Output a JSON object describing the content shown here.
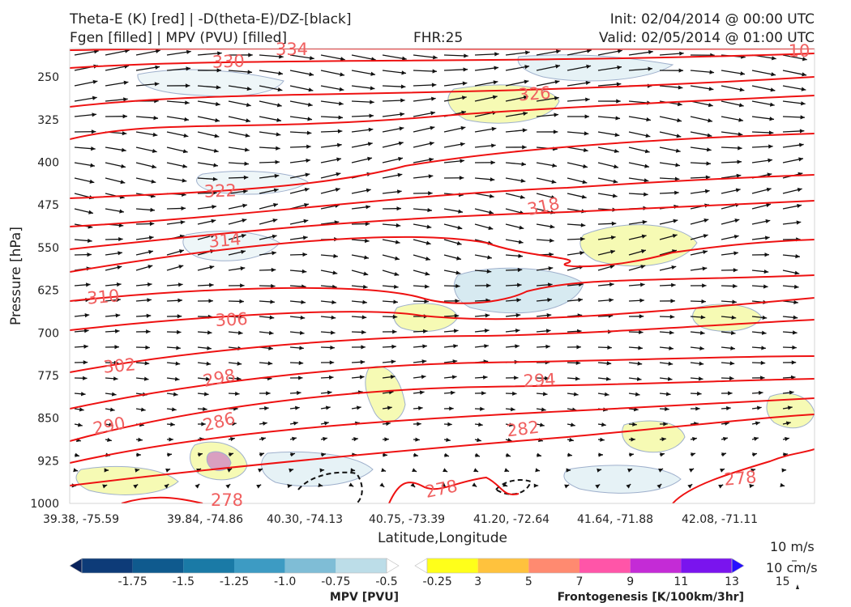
{
  "header": {
    "line1_left": "Theta-E (K) [red] | -D(theta-E)/DZ-[black]",
    "line2_left": "Fgen [filled] | MPV (PVU) [filled]",
    "fhr": "FHR:25",
    "init": "Init: 02/04/2014 @ 00:00 UTC",
    "valid": "Valid: 02/05/2014 @ 01:00 UTC"
  },
  "chart_data": {
    "type": "cross-section",
    "xlabel": "Latitude,Longitude",
    "ylabel": "Pressure [hPa]",
    "x_ticks": [
      "39.38, -75.59",
      "39.84, -74.86",
      "40.30, -74.13",
      "40.75, -73.39",
      "41.20, -72.64",
      "41.64, -71.88",
      "42.08, -71.11"
    ],
    "y_ticks": [
      250,
      325,
      400,
      475,
      550,
      625,
      700,
      775,
      850,
      925,
      1000
    ],
    "ylim": [
      1000,
      200
    ],
    "theta_e_contours": [
      {
        "label": "330",
        "value": 330
      },
      {
        "label": "334",
        "value": 334
      },
      {
        "label": "326",
        "value": 326
      },
      {
        "label": "322",
        "value": 322
      },
      {
        "label": "318",
        "value": 318
      },
      {
        "label": "314",
        "value": 314
      },
      {
        "label": "310",
        "value": 310
      },
      {
        "label": "306",
        "value": 306
      },
      {
        "label": "302",
        "value": 302
      },
      {
        "label": "298",
        "value": 298
      },
      {
        "label": "294",
        "value": 294
      },
      {
        "label": "290",
        "value": 290
      },
      {
        "label": "286",
        "value": 286
      },
      {
        "label": "282",
        "value": 282
      },
      {
        "label": "278",
        "value": 278
      },
      {
        "label": "278",
        "value": 278
      },
      {
        "label": "278",
        "value": 278
      },
      {
        "label": "10",
        "value": 10
      }
    ],
    "mpv_colorbar": {
      "title": "MPV [PVU]",
      "ticks": [
        "-1.75",
        "-1.5",
        "-1.25",
        "-1.0",
        "-0.75",
        "-0.5",
        "-0.25"
      ],
      "colors": [
        "#08225c",
        "#0d3b78",
        "#0f5a8e",
        "#1a7aa6",
        "#3d9bc3",
        "#7fbdd6",
        "#bcdde8",
        "#ffffff"
      ]
    },
    "fgen_colorbar": {
      "title": "Frontogenesis [K/100km/3hr]",
      "ticks": [
        "3",
        "5",
        "7",
        "9",
        "11",
        "13",
        "15"
      ],
      "colors": [
        "#ffffff",
        "#ffff1a",
        "#ffc23d",
        "#ff8a70",
        "#ff55a8",
        "#c42bd6",
        "#7a14ee",
        "#2610ff"
      ]
    },
    "vector_key": {
      "horizontal": "10 m/s",
      "vertical": "10 cm/s"
    }
  }
}
